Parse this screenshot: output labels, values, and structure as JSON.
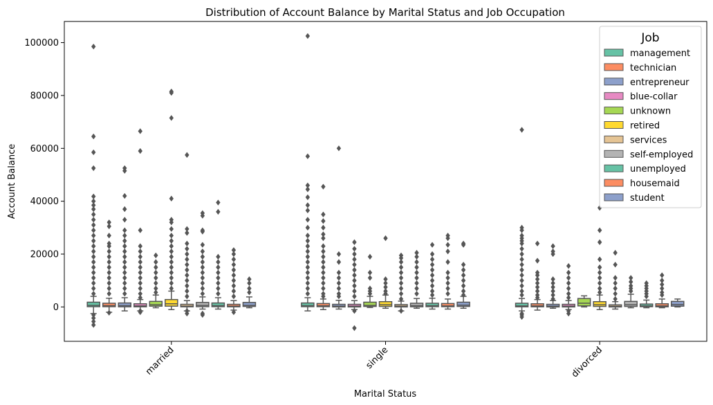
{
  "chart_data": {
    "type": "boxplot",
    "title": "Distribution of Account Balance by Marital Status and Job Occupation",
    "xlabel": "Marital Status",
    "ylabel": "Account Balance",
    "categories": [
      "married",
      "single",
      "divorced"
    ],
    "ylim": [
      -13000,
      108000
    ],
    "yticks": [
      0,
      20000,
      40000,
      60000,
      80000,
      100000
    ],
    "legend": {
      "title": "Job",
      "position": "top-right"
    },
    "series": [
      {
        "name": "management",
        "color": "#66c2a5",
        "stats": [
          {
            "min": -2500,
            "q1": 100,
            "median": 600,
            "q3": 1800,
            "max": 4000,
            "outliers": [
              98500,
              64500,
              58500,
              52500,
              41800,
              40000,
              38500,
              37000,
              35000,
              33000,
              31000,
              29000,
              27000,
              25000,
              23000,
              21000,
              19000,
              17000,
              15000,
              13000,
              11000,
              9000,
              7000,
              5000,
              -3000,
              -4200,
              -5500,
              -6800
            ]
          },
          {
            "min": -1500,
            "q1": 100,
            "median": 500,
            "q3": 1500,
            "max": 3500,
            "outliers": [
              102500,
              57000,
              46000,
              44500,
              41500,
              38500,
              36500,
              33000,
              30000,
              27000,
              25000,
              23000,
              21000,
              19000,
              17000,
              15000,
              13000,
              11000,
              9000,
              7000,
              5000
            ]
          },
          {
            "min": -1500,
            "q1": 50,
            "median": 400,
            "q3": 1400,
            "max": 3200,
            "outliers": [
              67000,
              30000,
              29000,
              27000,
              26000,
              25000,
              24000,
              22000,
              20000,
              18000,
              16000,
              14000,
              12000,
              10000,
              8000,
              6000,
              4500,
              -2500,
              -3000,
              -3800
            ]
          }
        ]
      },
      {
        "name": "technician",
        "color": "#fc8d62",
        "stats": [
          {
            "min": -2000,
            "q1": 100,
            "median": 500,
            "q3": 1400,
            "max": 3300,
            "outliers": [
              32000,
              30500,
              27000,
              24000,
              23000,
              21000,
              19000,
              17000,
              15000,
              13000,
              11000,
              9000,
              7000,
              5000,
              -2200
            ]
          },
          {
            "min": -1000,
            "q1": 100,
            "median": 450,
            "q3": 1300,
            "max": 3000,
            "outliers": [
              45500,
              35000,
              32500,
              30000,
              27500,
              26000,
              23000,
              21000,
              19000,
              17000,
              15000,
              13000,
              11000,
              9000,
              7000,
              5000,
              4000
            ]
          },
          {
            "min": -1200,
            "q1": 50,
            "median": 400,
            "q3": 1200,
            "max": 2800,
            "outliers": [
              24000,
              17500,
              13000,
              12000,
              10500,
              9000,
              7500,
              6000,
              4500,
              3500
            ]
          }
        ]
      },
      {
        "name": "entrepreneur",
        "color": "#8da0cb",
        "stats": [
          {
            "min": -1500,
            "q1": 50,
            "median": 500,
            "q3": 1500,
            "max": 3500,
            "outliers": [
              52500,
              51500,
              42000,
              37000,
              33000,
              29000,
              27000,
              25000,
              23000,
              21000,
              19000,
              17000,
              15000,
              13000,
              11000,
              9000,
              7000,
              5000
            ]
          },
          {
            "min": -800,
            "q1": 0,
            "median": 300,
            "q3": 1000,
            "max": 2500,
            "outliers": [
              60000,
              20000,
              17000,
              13000,
              11000,
              9000,
              7000,
              5000,
              4000
            ]
          },
          {
            "min": -500,
            "q1": 0,
            "median": 300,
            "q3": 1000,
            "max": 2400,
            "outliers": [
              23000,
              21000,
              20000,
              10500,
              9000,
              7500,
              6000,
              4500,
              3000
            ]
          }
        ]
      },
      {
        "name": "blue-collar",
        "color": "#e78ac3",
        "stats": [
          {
            "min": -1500,
            "q1": 50,
            "median": 400,
            "q3": 1200,
            "max": 2800,
            "outliers": [
              66500,
              59000,
              29000,
              23000,
              21000,
              19000,
              17000,
              15000,
              13000,
              11000,
              9000,
              7000,
              5000,
              3500,
              -1500,
              -2000
            ]
          },
          {
            "min": -1000,
            "q1": 0,
            "median": 300,
            "q3": 1000,
            "max": 2400,
            "outliers": [
              24500,
              22000,
              20000,
              18000,
              16000,
              14000,
              12000,
              10000,
              8000,
              6000,
              4000,
              -1500,
              -8000
            ]
          },
          {
            "min": -1000,
            "q1": 0,
            "median": 300,
            "q3": 1000,
            "max": 2400,
            "outliers": [
              15500,
              13000,
              11000,
              9000,
              7000,
              5000,
              3500,
              -1500,
              -2500
            ]
          }
        ]
      },
      {
        "name": "unknown",
        "color": "#a6d854",
        "stats": [
          {
            "min": -300,
            "q1": 300,
            "median": 800,
            "q3": 2100,
            "max": 4500,
            "outliers": [
              19500,
              17000,
              15000,
              13000,
              11000,
              9000,
              7000,
              5500
            ]
          },
          {
            "min": -200,
            "q1": 200,
            "median": 600,
            "q3": 1800,
            "max": 4000,
            "outliers": [
              19000,
              13000,
              11000,
              7000,
              6000,
              5000
            ]
          },
          {
            "min": 0,
            "q1": 400,
            "median": 1400,
            "q3": 3200,
            "max": 4200,
            "outliers": []
          }
        ]
      },
      {
        "name": "retired",
        "color": "#ffd92f",
        "stats": [
          {
            "min": -1000,
            "q1": 300,
            "median": 1200,
            "q3": 2800,
            "max": 6000,
            "outliers": [
              81500,
              81000,
              71500,
              41000,
              33000,
              32000,
              29500,
              27000,
              25000,
              23000,
              21000,
              19000,
              17000,
              15000,
              13000,
              11000,
              9000,
              7000
            ]
          },
          {
            "min": -500,
            "q1": 200,
            "median": 800,
            "q3": 2000,
            "max": 4500,
            "outliers": [
              26000,
              10500,
              9000,
              7500,
              6000,
              5000
            ]
          },
          {
            "min": -1000,
            "q1": 200,
            "median": 800,
            "q3": 2000,
            "max": 4500,
            "outliers": [
              37500,
              29000,
              24500,
              18000,
              15000,
              13000,
              11000,
              9000,
              7000,
              5500
            ]
          }
        ]
      },
      {
        "name": "services",
        "color": "#e5c494",
        "stats": [
          {
            "min": -1500,
            "q1": 50,
            "median": 300,
            "q3": 1000,
            "max": 2400,
            "outliers": [
              57500,
              29500,
              28000,
              24000,
              22000,
              20000,
              18000,
              16000,
              14000,
              12000,
              10000,
              8000,
              6000,
              4000,
              -1500,
              -2500
            ]
          },
          {
            "min": -1500,
            "q1": 0,
            "median": 300,
            "q3": 900,
            "max": 2200,
            "outliers": [
              19500,
              18500,
              17000,
              15000,
              13000,
              11000,
              9000,
              7000,
              5000,
              3000,
              -1500
            ]
          },
          {
            "min": -800,
            "q1": 0,
            "median": 250,
            "q3": 800,
            "max": 2000,
            "outliers": [
              20500,
              16000,
              11000,
              9000,
              7000,
              5000,
              3000
            ]
          }
        ]
      },
      {
        "name": "self-employed",
        "color": "#b3b3b3",
        "stats": [
          {
            "min": -800,
            "q1": 100,
            "median": 600,
            "q3": 1700,
            "max": 3800,
            "outliers": [
              35500,
              34500,
              29000,
              28500,
              23500,
              21000,
              19000,
              17000,
              15000,
              13000,
              11000,
              9000,
              7000,
              5000,
              -2500,
              -3000
            ]
          },
          {
            "min": -500,
            "q1": 50,
            "median": 500,
            "q3": 1400,
            "max": 3200,
            "outliers": [
              20500,
              19000,
              17000,
              15000,
              13000,
              11000,
              9000,
              7000,
              5000
            ]
          },
          {
            "min": -300,
            "q1": 200,
            "median": 800,
            "q3": 2100,
            "max": 4800,
            "outliers": [
              11000,
              9500,
              8000,
              7000,
              6000
            ]
          }
        ]
      },
      {
        "name": "unemployed",
        "color": "#66c2a5",
        "stats": [
          {
            "min": -800,
            "q1": 100,
            "median": 500,
            "q3": 1500,
            "max": 3500,
            "outliers": [
              39500,
              36000,
              19000,
              17000,
              15000,
              13000,
              11000,
              9000,
              7000,
              5000
            ]
          },
          {
            "min": -800,
            "q1": 100,
            "median": 500,
            "q3": 1400,
            "max": 3300,
            "outliers": [
              23500,
              20000,
              18000,
              16000,
              14000,
              12000,
              10000,
              8000,
              6000,
              4500
            ]
          },
          {
            "min": -300,
            "q1": 100,
            "median": 400,
            "q3": 1100,
            "max": 2600,
            "outliers": [
              9000,
              8000,
              7000,
              6000,
              5000,
              4000
            ]
          }
        ]
      },
      {
        "name": "housemaid",
        "color": "#fc8d62",
        "stats": [
          {
            "min": -1200,
            "q1": 50,
            "median": 300,
            "q3": 1000,
            "max": 2400,
            "outliers": [
              21500,
              20000,
              18000,
              16000,
              14000,
              12000,
              10000,
              8000,
              6000,
              4000,
              -2000
            ]
          },
          {
            "min": -800,
            "q1": 100,
            "median": 400,
            "q3": 1300,
            "max": 3000,
            "outliers": [
              27000,
              26000,
              23500,
              21000,
              17000,
              13000,
              11000,
              9000,
              7000,
              5000
            ]
          },
          {
            "min": -300,
            "q1": 50,
            "median": 400,
            "q3": 1200,
            "max": 3000,
            "outliers": [
              12000,
              10000,
              8500,
              7000,
              5500,
              4500
            ]
          }
        ]
      },
      {
        "name": "student",
        "color": "#8da0cb",
        "stats": [
          {
            "min": -300,
            "q1": 200,
            "median": 600,
            "q3": 1700,
            "max": 3800,
            "outliers": [
              10500,
              9000,
              7000,
              5500
            ]
          },
          {
            "min": -500,
            "q1": 200,
            "median": 700,
            "q3": 1800,
            "max": 4000,
            "outliers": [
              24000,
              23500,
              16000,
              14000,
              12000,
              10000,
              8000,
              6000,
              4500
            ]
          },
          {
            "min": 0,
            "q1": 300,
            "median": 900,
            "q3": 2100,
            "max": 3000,
            "outliers": []
          }
        ]
      }
    ]
  }
}
